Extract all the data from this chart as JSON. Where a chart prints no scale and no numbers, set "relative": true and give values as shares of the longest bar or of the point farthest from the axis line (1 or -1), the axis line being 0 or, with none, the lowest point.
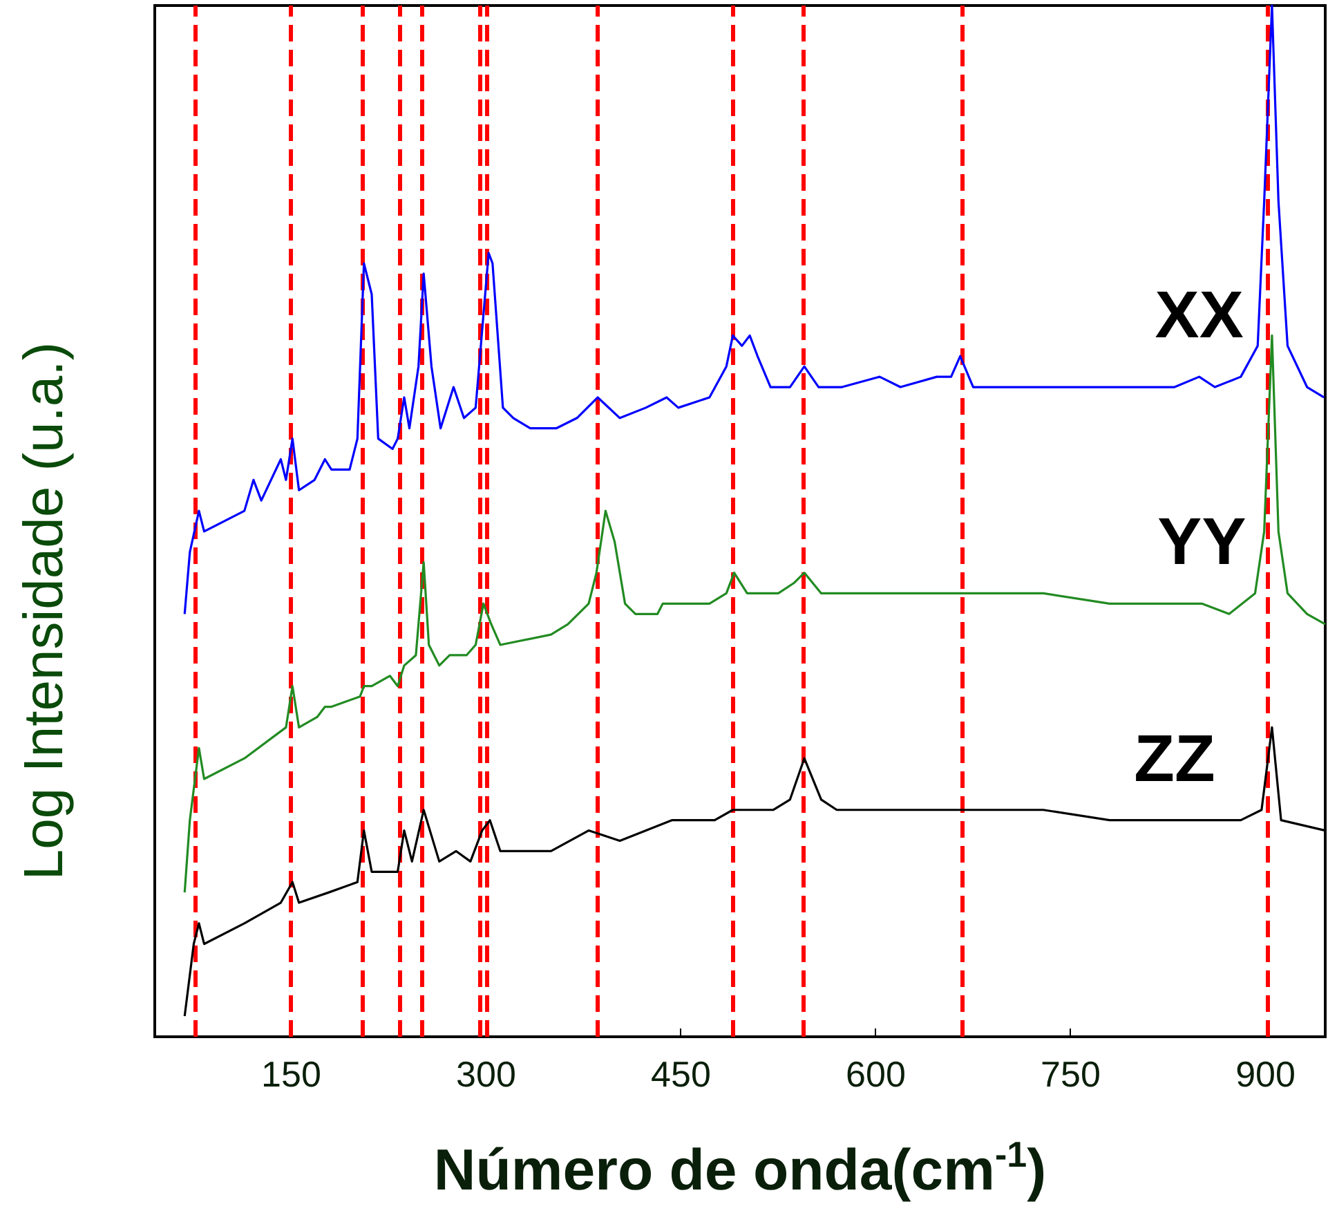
{
  "chart_data": {
    "type": "line",
    "xlabel": "Número de onda(cm$^{-1}$)",
    "ylabel": "Log Intensidade (u.a.)",
    "relative": true,
    "tick_labels": "x",
    "xlim": [
      45,
      946
    ],
    "xticks": [
      150,
      300,
      450,
      600,
      750,
      900
    ],
    "ref_lines": [
      {
        "axis": "x",
        "value": 76,
        "color": "#ff0000",
        "line_style": "dashed"
      },
      {
        "axis": "x",
        "value": 150,
        "color": "#ff0000",
        "line_style": "dashed"
      },
      {
        "axis": "x",
        "value": 205,
        "color": "#ff0000",
        "line_style": "dashed"
      },
      {
        "axis": "x",
        "value": 234,
        "color": "#ff0000",
        "line_style": "dashed"
      },
      {
        "axis": "x",
        "value": 251,
        "color": "#ff0000",
        "line_style": "dashed"
      },
      {
        "axis": "x",
        "value": 295,
        "color": "#ff0000",
        "line_style": "dashed"
      },
      {
        "axis": "x",
        "value": 301,
        "color": "#ff0000",
        "line_style": "dashed"
      },
      {
        "axis": "x",
        "value": 386,
        "color": "#ff0000",
        "line_style": "dashed"
      },
      {
        "axis": "x",
        "value": 490,
        "color": "#ff0000",
        "line_style": "dashed"
      },
      {
        "axis": "x",
        "value": 544,
        "color": "#ff0000",
        "line_style": "dashed"
      },
      {
        "axis": "x",
        "value": 666,
        "color": "#ff0000",
        "line_style": "dashed"
      },
      {
        "axis": "x",
        "value": 902,
        "color": "#ff0000",
        "line_style": "dashed"
      }
    ],
    "series": [
      {
        "name": "XX",
        "color": "#0000ff",
        "x": [
          68,
          72,
          79,
          83,
          114,
          121,
          127,
          142,
          146,
          151,
          156,
          168,
          176,
          181,
          195,
          201,
          206,
          212,
          217,
          228,
          232,
          237,
          241,
          248,
          252,
          258,
          265,
          275,
          283,
          292,
          302,
          305,
          313,
          321,
          334,
          350,
          354,
          370,
          386,
          403,
          423,
          439,
          448,
          472,
          485,
          490,
          497,
          503,
          509,
          519,
          534,
          545,
          556,
          574,
          603,
          619,
          647,
          658,
          665,
          675,
          729,
          780,
          830,
          849,
          861,
          881,
          894,
          899,
          905,
          910,
          917,
          932,
          945
        ],
        "values": [
          0.41,
          0.47,
          0.51,
          0.49,
          0.51,
          0.54,
          0.52,
          0.56,
          0.54,
          0.58,
          0.53,
          0.54,
          0.56,
          0.55,
          0.55,
          0.58,
          0.75,
          0.72,
          0.58,
          0.57,
          0.58,
          0.62,
          0.59,
          0.65,
          0.74,
          0.65,
          0.59,
          0.63,
          0.6,
          0.61,
          0.76,
          0.75,
          0.61,
          0.6,
          0.59,
          0.59,
          0.59,
          0.6,
          0.62,
          0.6,
          0.61,
          0.62,
          0.61,
          0.62,
          0.65,
          0.68,
          0.67,
          0.68,
          0.66,
          0.63,
          0.63,
          0.65,
          0.63,
          0.63,
          0.64,
          0.63,
          0.64,
          0.64,
          0.66,
          0.63,
          0.63,
          0.63,
          0.63,
          0.64,
          0.63,
          0.64,
          0.67,
          0.81,
          1,
          0.81,
          0.67,
          0.63,
          0.62
        ]
      },
      {
        "name": "YY",
        "color": "#228b22",
        "x": [
          68,
          72,
          79,
          83,
          114,
          146,
          151,
          156,
          170,
          176,
          181,
          203,
          206,
          212,
          226,
          232,
          237,
          246,
          252,
          256,
          264,
          272,
          285,
          292,
          298,
          304,
          311,
          350,
          363,
          379,
          385,
          392,
          399,
          407,
          415,
          432,
          436,
          472,
          485,
          491,
          501,
          525,
          537,
          545,
          558,
          594,
          614,
          647,
          665,
          729,
          780,
          830,
          851,
          872,
          892,
          899,
          905,
          910,
          917,
          932,
          946
        ],
        "values": [
          0.14,
          0.21,
          0.28,
          0.25,
          0.27,
          0.3,
          0.34,
          0.3,
          0.31,
          0.32,
          0.32,
          0.33,
          0.34,
          0.34,
          0.35,
          0.34,
          0.36,
          0.37,
          0.46,
          0.38,
          0.36,
          0.37,
          0.37,
          0.38,
          0.42,
          0.4,
          0.38,
          0.39,
          0.4,
          0.42,
          0.45,
          0.51,
          0.48,
          0.42,
          0.41,
          0.41,
          0.42,
          0.42,
          0.43,
          0.45,
          0.43,
          0.43,
          0.44,
          0.45,
          0.43,
          0.43,
          0.43,
          0.43,
          0.43,
          0.43,
          0.42,
          0.42,
          0.42,
          0.41,
          0.43,
          0.49,
          0.68,
          0.49,
          0.43,
          0.41,
          0.4
        ]
      },
      {
        "name": "ZZ",
        "color": "#000000",
        "x": [
          68,
          75,
          79,
          83,
          114,
          142,
          151,
          156,
          179,
          201,
          206,
          212,
          223,
          232,
          237,
          243,
          252,
          264,
          277,
          288,
          297,
          303,
          311,
          350,
          379,
          403,
          443,
          476,
          490,
          505,
          521,
          534,
          545,
          558,
          570,
          614,
          647,
          665,
          729,
          780,
          830,
          881,
          897,
          905,
          912,
          946
        ],
        "values": [
          0.02,
          0.09,
          0.11,
          0.09,
          0.11,
          0.13,
          0.15,
          0.13,
          0.14,
          0.15,
          0.2,
          0.16,
          0.16,
          0.16,
          0.2,
          0.17,
          0.22,
          0.17,
          0.18,
          0.17,
          0.2,
          0.21,
          0.18,
          0.18,
          0.2,
          0.19,
          0.21,
          0.21,
          0.22,
          0.22,
          0.22,
          0.23,
          0.27,
          0.23,
          0.22,
          0.22,
          0.22,
          0.22,
          0.22,
          0.21,
          0.21,
          0.21,
          0.22,
          0.3,
          0.21,
          0.2
        ]
      }
    ]
  }
}
